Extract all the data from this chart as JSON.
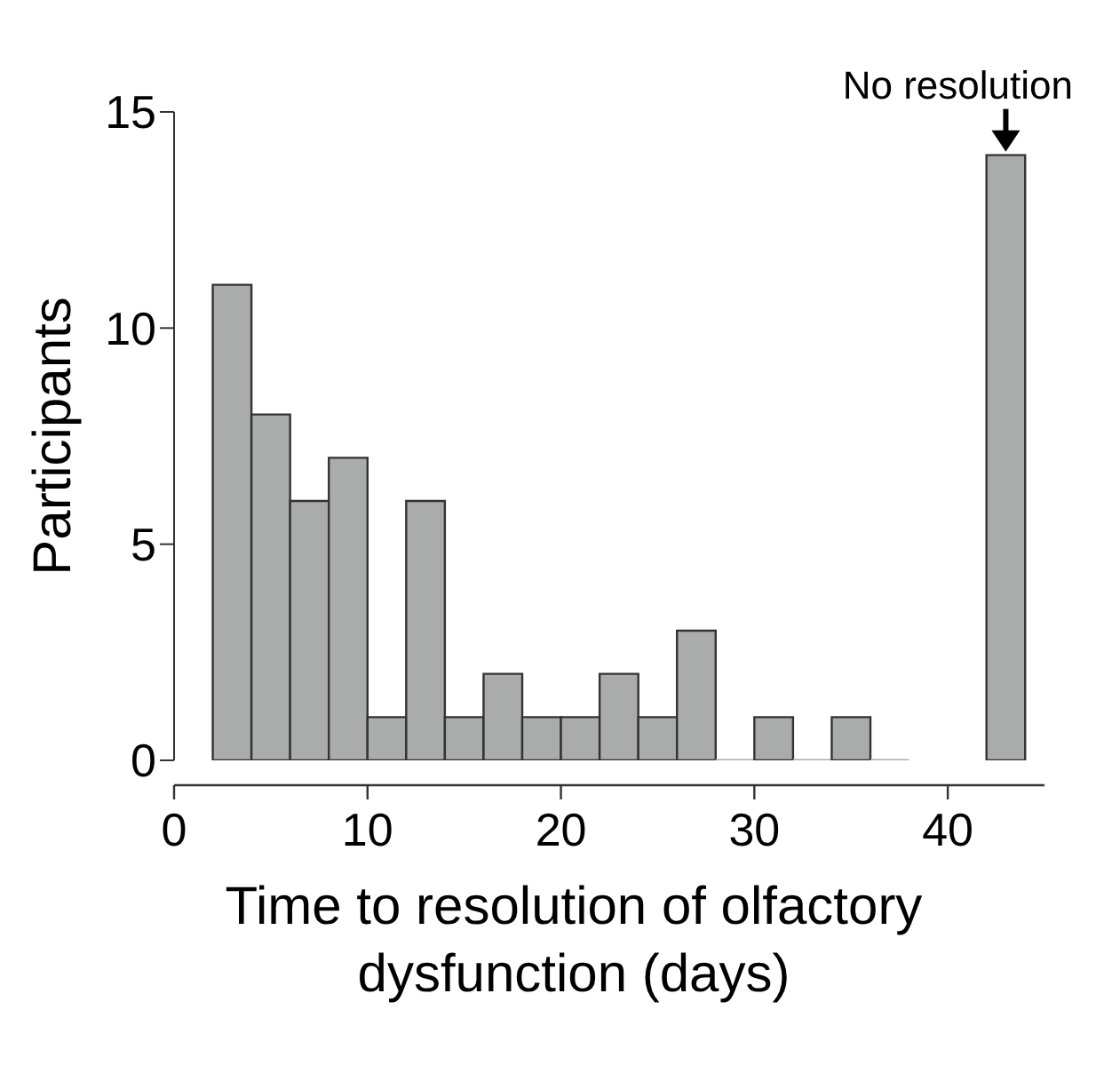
{
  "chart_data": {
    "type": "histogram",
    "xlabel": "Time to resolution of olfactory dysfunction (days)",
    "ylabel": "Participants",
    "bins": [
      2,
      4,
      6,
      8,
      10,
      12,
      14,
      16,
      18,
      20,
      22,
      24,
      26,
      28,
      30,
      32,
      34,
      36,
      38,
      42,
      44
    ],
    "values": [
      11,
      8,
      6,
      7,
      1,
      6,
      1,
      2,
      1,
      1,
      2,
      1,
      3,
      0,
      1,
      0,
      1,
      0,
      null,
      14
    ],
    "color": "#aaacab",
    "xlim": [
      0,
      45
    ],
    "xticks": [
      0,
      10,
      20,
      30,
      40
    ],
    "ylim": [
      0,
      15
    ],
    "yticks": [
      0,
      5,
      10,
      15
    ],
    "annotations": [
      {
        "text": "No resolution",
        "x": 43,
        "y": 14
      }
    ]
  }
}
